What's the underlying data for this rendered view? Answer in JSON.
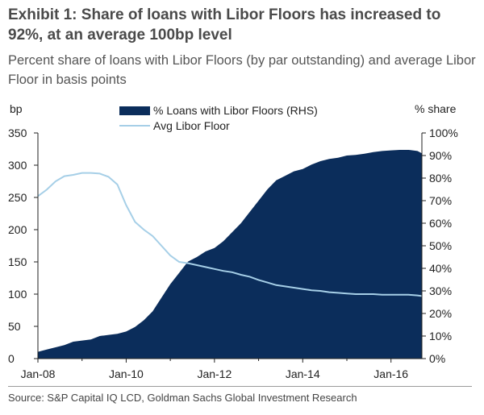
{
  "exhibit": {
    "title": "Exhibit 1: Share of loans with Libor Floors has increased to 92%, at an average 100bp level",
    "subtitle": "Percent share of loans with Libor Floors (by par outstanding) and average Libor Floor in basis points",
    "source": "Source: S&P Capital IQ LCD, Goldman Sachs Global Investment Research"
  },
  "colors": {
    "area": "#0b2d5b",
    "line": "#a6cfe7"
  },
  "chart_data": {
    "type": "area",
    "left_axis_label": "bp",
    "right_axis_label": "% share",
    "x_tick_labels": [
      "Jan-08",
      "Jan-10",
      "Jan-12",
      "Jan-14",
      "Jan-16"
    ],
    "x_tick_years": [
      2008,
      2010,
      2012,
      2014,
      2016
    ],
    "x_range": [
      2008.0,
      2016.7
    ],
    "ylim_left": [
      0,
      350
    ],
    "ylim_right": [
      0,
      100
    ],
    "left_ticks": [
      0,
      50,
      100,
      150,
      200,
      250,
      300,
      350
    ],
    "right_ticks": [
      "0%",
      "10%",
      "20%",
      "30%",
      "40%",
      "50%",
      "60%",
      "70%",
      "80%",
      "90%",
      "100%"
    ],
    "series": [
      {
        "name": "% Loans with Libor Floors (RHS)",
        "type": "area",
        "axis": "right",
        "x": [
          2008.0,
          2008.2,
          2008.4,
          2008.6,
          2008.8,
          2009.0,
          2009.2,
          2009.4,
          2009.6,
          2009.8,
          2010.0,
          2010.2,
          2010.4,
          2010.6,
          2010.8,
          2011.0,
          2011.2,
          2011.4,
          2011.6,
          2011.8,
          2012.0,
          2012.2,
          2012.4,
          2012.6,
          2012.8,
          2013.0,
          2013.2,
          2013.4,
          2013.6,
          2013.8,
          2014.0,
          2014.2,
          2014.4,
          2014.6,
          2014.8,
          2015.0,
          2015.2,
          2015.4,
          2015.6,
          2015.8,
          2016.0,
          2016.2,
          2016.4,
          2016.6,
          2016.7
        ],
        "values": [
          3,
          4,
          5,
          6,
          7.5,
          8,
          8.5,
          10,
          10.5,
          11,
          12,
          14,
          17,
          21,
          27,
          33,
          38,
          43,
          45,
          47.5,
          49,
          52,
          56,
          60,
          65,
          70,
          75,
          79,
          81,
          83,
          84,
          86,
          87.5,
          88.5,
          89,
          90,
          90.3,
          90.8,
          91.5,
          92,
          92.3,
          92.5,
          92.5,
          92,
          91
        ]
      },
      {
        "name": "Avg Libor Floor",
        "type": "line",
        "axis": "left",
        "x": [
          2008.0,
          2008.2,
          2008.4,
          2008.6,
          2008.8,
          2009.0,
          2009.2,
          2009.4,
          2009.6,
          2009.8,
          2010.0,
          2010.2,
          2010.4,
          2010.6,
          2010.8,
          2011.0,
          2011.2,
          2011.4,
          2011.6,
          2011.8,
          2012.0,
          2012.2,
          2012.4,
          2012.6,
          2012.8,
          2013.0,
          2013.2,
          2013.4,
          2013.6,
          2013.8,
          2014.0,
          2014.2,
          2014.4,
          2014.6,
          2014.8,
          2015.0,
          2015.2,
          2015.4,
          2015.6,
          2015.8,
          2016.0,
          2016.2,
          2016.4,
          2016.6,
          2016.7
        ],
        "values": [
          252,
          262,
          275,
          283,
          285,
          288,
          288,
          287,
          282,
          270,
          238,
          212,
          200,
          190,
          175,
          160,
          150,
          148,
          145,
          142,
          139,
          136,
          134,
          130,
          127,
          122,
          118,
          114,
          112,
          110,
          108,
          106,
          105,
          103,
          102,
          101,
          100,
          100,
          100,
          99,
          99,
          99,
          99,
          98,
          97
        ]
      }
    ],
    "grid": false,
    "legend_position": "top-center"
  }
}
